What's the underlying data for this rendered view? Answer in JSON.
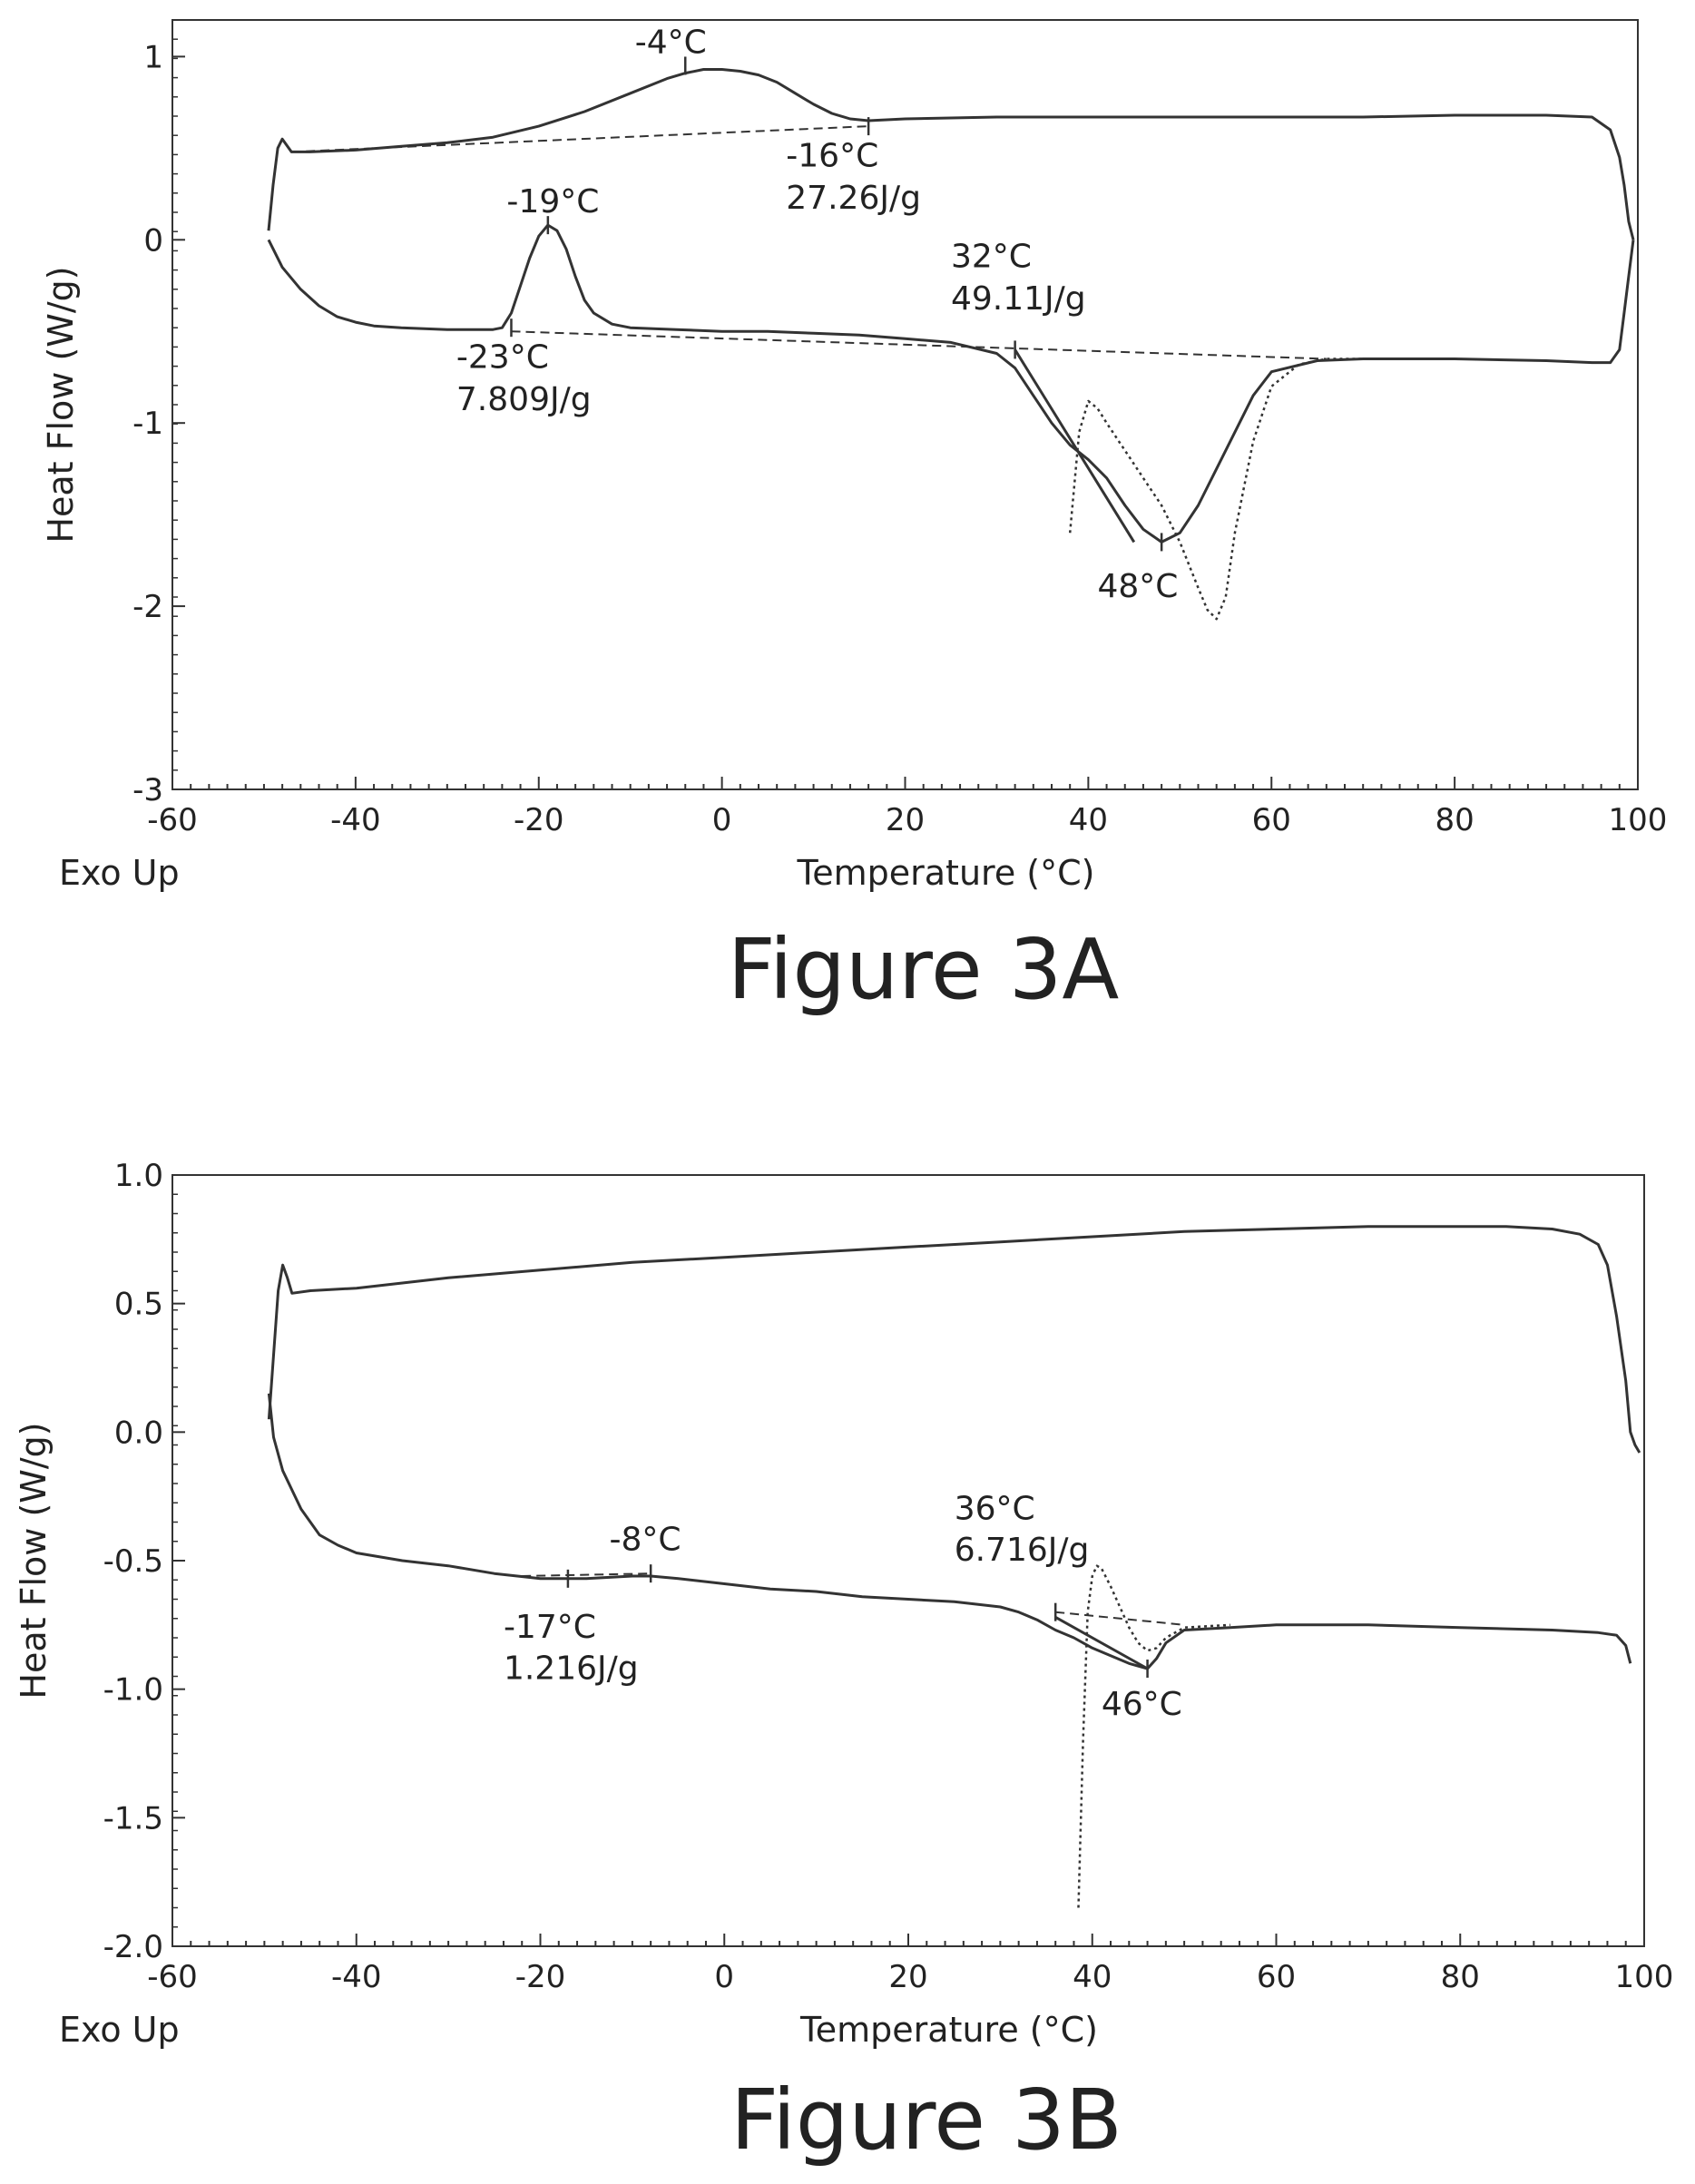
{
  "chart_data": [
    {
      "type": "line",
      "caption": "Figure 3A",
      "xlabel": "Temperature (°C)",
      "ylabel": "Heat Flow (W/g)",
      "corner_note": "Exo Up",
      "xlim": [
        -60,
        100
      ],
      "ylim": [
        -3,
        1.2
      ],
      "xticks": [
        -60,
        -40,
        -20,
        0,
        20,
        40,
        60,
        80,
        100
      ],
      "xtick_labels": [
        "-60",
        "-40",
        "-20",
        "0",
        "20",
        "40",
        "60",
        "80",
        "100"
      ],
      "yticks": [
        1,
        0,
        -1,
        -2,
        -3
      ],
      "ytick_labels": [
        "1",
        "0",
        "-1",
        "-2",
        "-3"
      ],
      "grid": false,
      "series": [
        {
          "style": "solid",
          "x": [
            -49.5,
            -49,
            -48.5,
            -48,
            -47,
            -45,
            -40,
            -35,
            -30,
            -25,
            -20,
            -15,
            -10,
            -6,
            -4,
            -2,
            0,
            2,
            4,
            6,
            8,
            10,
            12,
            14,
            16,
            20,
            30,
            40,
            50,
            60,
            70,
            80,
            90,
            95,
            97,
            98,
            98.5,
            99,
            99.5
          ],
          "y": [
            0.05,
            0.3,
            0.5,
            0.55,
            0.48,
            0.48,
            0.49,
            0.51,
            0.53,
            0.56,
            0.62,
            0.7,
            0.8,
            0.88,
            0.91,
            0.93,
            0.93,
            0.92,
            0.9,
            0.86,
            0.8,
            0.74,
            0.69,
            0.66,
            0.65,
            0.66,
            0.67,
            0.67,
            0.67,
            0.67,
            0.67,
            0.68,
            0.68,
            0.67,
            0.6,
            0.45,
            0.3,
            0.1,
            0
          ]
        },
        {
          "style": "solid",
          "x": [
            -49.5,
            -48,
            -46,
            -44,
            -42,
            -40,
            -38,
            -35,
            -30,
            -25,
            -24,
            -23,
            -22,
            -21,
            -20,
            -19,
            -18,
            -17,
            -16,
            -15,
            -14,
            -12,
            -10,
            -5,
            0,
            5,
            10,
            15,
            20,
            25,
            30,
            32,
            34,
            36,
            38,
            40,
            42,
            44,
            46,
            48,
            50,
            52,
            54,
            56,
            58,
            60,
            65,
            70,
            80,
            90,
            95,
            97,
            98,
            98.5,
            99,
            99.5
          ],
          "y": [
            0,
            -0.15,
            -0.27,
            -0.36,
            -0.42,
            -0.45,
            -0.47,
            -0.48,
            -0.49,
            -0.49,
            -0.48,
            -0.4,
            -0.25,
            -0.1,
            0.02,
            0.08,
            0.05,
            -0.05,
            -0.2,
            -0.33,
            -0.4,
            -0.46,
            -0.48,
            -0.49,
            -0.5,
            -0.5,
            -0.51,
            -0.52,
            -0.54,
            -0.56,
            -0.62,
            -0.7,
            -0.85,
            -1,
            -1.12,
            -1.2,
            -1.3,
            -1.45,
            -1.58,
            -1.65,
            -1.6,
            -1.45,
            -1.25,
            -1.05,
            -0.85,
            -0.72,
            -0.66,
            -0.65,
            -0.65,
            -0.66,
            -0.67,
            -0.67,
            -0.6,
            -0.4,
            -0.2,
            0
          ]
        },
        {
          "style": "dotted",
          "x": [
            38,
            39,
            40,
            41,
            42,
            44,
            46,
            48,
            50,
            52,
            53,
            54,
            55,
            56,
            58,
            60,
            63,
            66,
            70
          ],
          "y": [
            -1.6,
            -1.05,
            -0.88,
            -0.92,
            -1,
            -1.15,
            -1.3,
            -1.45,
            -1.65,
            -1.9,
            -2.02,
            -2.07,
            -1.95,
            -1.6,
            -1.1,
            -0.8,
            -0.68,
            -0.65,
            -0.65
          ]
        },
        {
          "style": "dashed",
          "x": [
            -47,
            16
          ],
          "y": [
            0.48,
            0.62
          ]
        },
        {
          "style": "dashed",
          "x": [
            -23,
            66
          ],
          "y": [
            -0.5,
            -0.65
          ]
        },
        {
          "style": "solid",
          "x": [
            32,
            45
          ],
          "y": [
            -0.6,
            -1.65
          ]
        }
      ],
      "annotations": [
        {
          "text": "-4°C",
          "x": -4,
          "y": 0.95,
          "label_x": -9.5,
          "label_y": 1.02
        },
        {
          "text": "-16°C",
          "x": 16,
          "y": 0.62,
          "label_x": 7,
          "label_y": 0.4
        },
        {
          "text": "27.26J/g",
          "label_x": 7,
          "label_y": 0.17
        },
        {
          "text": "-19°C",
          "x": -19,
          "y": 0.08,
          "label_x": -23.5,
          "label_y": 0.15
        },
        {
          "text": "-23°C",
          "x": -23,
          "y": -0.48,
          "label_x": -29,
          "label_y": -0.7
        },
        {
          "text": "7.809J/g",
          "label_x": -29,
          "label_y": -0.93
        },
        {
          "text": "32°C",
          "x": 32,
          "y": -0.6,
          "label_x": 25,
          "label_y": -0.15
        },
        {
          "text": "49.11J/g",
          "label_x": 25,
          "label_y": -0.38
        },
        {
          "text": "48°C",
          "x": 48,
          "y": -1.65,
          "label_x": 41,
          "label_y": -1.95
        }
      ]
    },
    {
      "type": "line",
      "caption": "Figure 3B",
      "xlabel": "Temperature (°C)",
      "ylabel": "Heat Flow (W/g)",
      "corner_note": "Exo Up",
      "xlim": [
        -60,
        100
      ],
      "ylim": [
        -2,
        1
      ],
      "xticks": [
        -60,
        -40,
        -20,
        0,
        20,
        40,
        60,
        80,
        100
      ],
      "xtick_labels": [
        "-60",
        "-40",
        "-20",
        "0",
        "20",
        "40",
        "60",
        "80",
        "100"
      ],
      "yticks": [
        1,
        0.5,
        0,
        -0.5,
        -1,
        -1.5,
        -2
      ],
      "ytick_labels": [
        "1.0",
        "0.5",
        "0.0",
        "-0.5",
        "-1.0",
        "-1.5",
        "-2.0"
      ],
      "grid": false,
      "series": [
        {
          "style": "solid",
          "x": [
            -49.5,
            -49,
            -48.5,
            -48,
            -47.5,
            -47,
            -45,
            -40,
            -30,
            -20,
            -10,
            0,
            10,
            20,
            30,
            40,
            50,
            60,
            70,
            80,
            85,
            90,
            93,
            95,
            96,
            97,
            98,
            98.5,
            99,
            99.5
          ],
          "y": [
            0.05,
            0.3,
            0.55,
            0.65,
            0.6,
            0.54,
            0.55,
            0.56,
            0.6,
            0.63,
            0.66,
            0.68,
            0.7,
            0.72,
            0.74,
            0.76,
            0.78,
            0.79,
            0.8,
            0.8,
            0.8,
            0.79,
            0.77,
            0.73,
            0.65,
            0.45,
            0.2,
            0,
            -0.05,
            -0.08
          ]
        },
        {
          "style": "solid",
          "x": [
            -49.5,
            -49,
            -48,
            -46,
            -44,
            -42,
            -40,
            -35,
            -30,
            -25,
            -20,
            -15,
            -10,
            -8,
            -5,
            0,
            5,
            10,
            15,
            20,
            25,
            30,
            32,
            34,
            36,
            38,
            40,
            42,
            44,
            45,
            46,
            47,
            48,
            50,
            55,
            60,
            70,
            80,
            90,
            95,
            97,
            98,
            98.5
          ],
          "y": [
            0.15,
            -0.02,
            -0.15,
            -0.3,
            -0.4,
            -0.44,
            -0.47,
            -0.5,
            -0.52,
            -0.55,
            -0.57,
            -0.57,
            -0.56,
            -0.56,
            -0.57,
            -0.59,
            -0.61,
            -0.62,
            -0.64,
            -0.65,
            -0.66,
            -0.68,
            -0.7,
            -0.73,
            -0.77,
            -0.8,
            -0.84,
            -0.87,
            -0.9,
            -0.91,
            -0.92,
            -0.88,
            -0.82,
            -0.77,
            -0.76,
            -0.75,
            -0.75,
            -0.76,
            -0.77,
            -0.78,
            -0.79,
            -0.83,
            -0.9
          ]
        },
        {
          "style": "dotted",
          "x": [
            38.5,
            39,
            39.5,
            40,
            40.5,
            41,
            42,
            43,
            44,
            45,
            46,
            47,
            48,
            50,
            55
          ],
          "y": [
            -1.85,
            -1.2,
            -0.7,
            -0.56,
            -0.52,
            -0.53,
            -0.6,
            -0.68,
            -0.76,
            -0.82,
            -0.85,
            -0.84,
            -0.8,
            -0.76,
            -0.75
          ]
        },
        {
          "style": "dashed",
          "x": [
            -22,
            -8
          ],
          "y": [
            -0.56,
            -0.55
          ]
        },
        {
          "style": "dashed",
          "x": [
            36,
            50
          ],
          "y": [
            -0.7,
            -0.75
          ]
        },
        {
          "style": "solid",
          "x": [
            36,
            46
          ],
          "y": [
            -0.72,
            -0.92
          ]
        }
      ],
      "annotations": [
        {
          "text": "-8°C",
          "x": -8,
          "y": -0.55,
          "label_x": -12.5,
          "label_y": -0.46
        },
        {
          "text": "-17°C",
          "x": -17,
          "y": -0.57,
          "label_x": -24,
          "label_y": -0.8
        },
        {
          "text": "1.216J/g",
          "label_x": -24,
          "label_y": -0.96
        },
        {
          "text": "36°C",
          "x": 36,
          "y": -0.7,
          "label_x": 25,
          "label_y": -0.34
        },
        {
          "text": "6.716J/g",
          "label_x": 25,
          "label_y": -0.5
        },
        {
          "text": "46°C",
          "x": 46,
          "y": -0.92,
          "label_x": 41,
          "label_y": -1.1
        }
      ]
    }
  ]
}
